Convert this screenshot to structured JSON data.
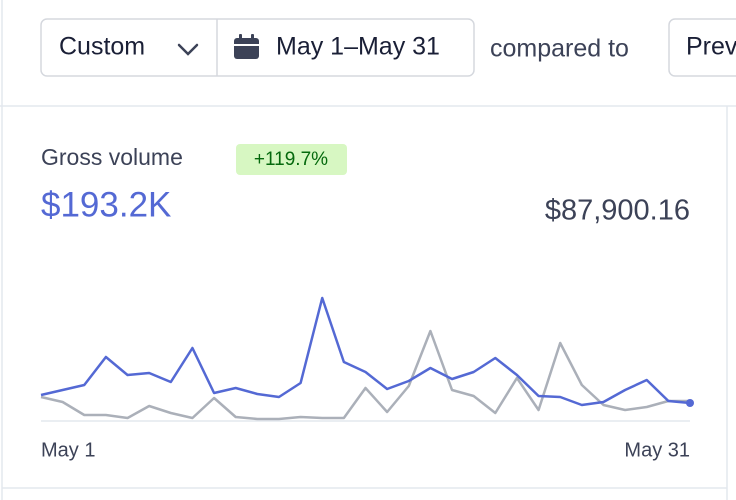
{
  "header": {
    "range": "Custom",
    "dates": "May 1–May 31",
    "compared": "compared to",
    "previous": "Prev"
  },
  "chart_data": {
    "type": "line",
    "title": "Gross volume",
    "badge": "+119.7%",
    "current_total": "$193.2K",
    "previous_total": "$87,900.16",
    "categories": [
      "May 1",
      null,
      null,
      null,
      null,
      null,
      null,
      null,
      null,
      null,
      null,
      null,
      null,
      null,
      null,
      null,
      null,
      null,
      null,
      null,
      null,
      null,
      null,
      null,
      null,
      null,
      null,
      null,
      null,
      null,
      "May 31"
    ],
    "series": [
      {
        "color": "#abb0b9",
        "values": [
          24,
          19,
          6,
          6,
          3,
          15,
          8,
          3,
          23,
          4,
          2,
          2,
          4,
          3,
          3,
          33,
          9,
          35,
          90,
          31,
          25,
          8,
          43,
          11,
          78,
          36,
          16,
          11,
          14,
          20,
          20
        ]
      },
      {
        "color": "#5469d4",
        "values": [
          26,
          31,
          36,
          64,
          46,
          48,
          39,
          73,
          28,
          33,
          27,
          24,
          38,
          123,
          59,
          49,
          32,
          40,
          53,
          42,
          49,
          63,
          46,
          25,
          24,
          16,
          19,
          31,
          41,
          20,
          18
        ]
      }
    ]
  }
}
